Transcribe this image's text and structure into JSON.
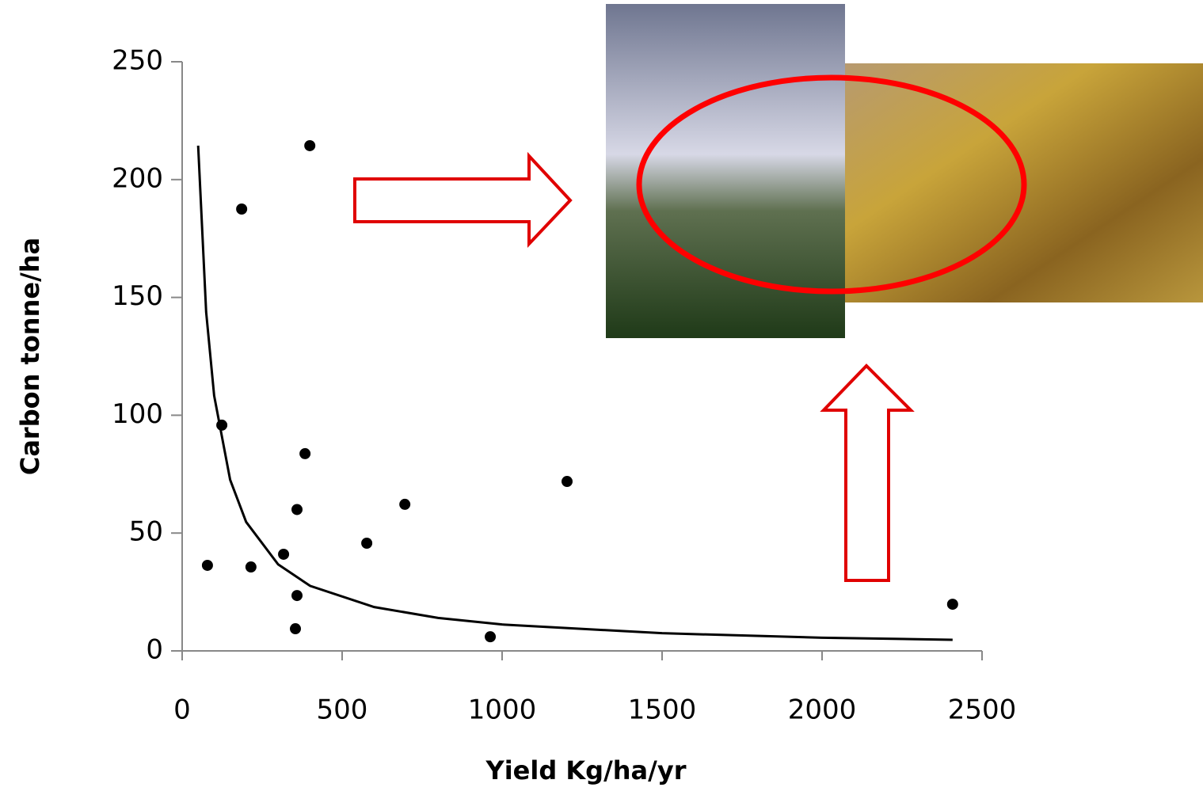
{
  "chart_data": {
    "type": "scatter",
    "xlabel": "Yield Kg/ha/yr",
    "ylabel": "Carbon tonne/ha",
    "xlim": [
      0,
      2500
    ],
    "xticks": [
      0,
      500,
      1000,
      1500,
      2000,
      2500
    ],
    "ylim": [
      0,
      250
    ],
    "yticks": [
      0,
      50,
      100,
      150,
      200,
      250
    ],
    "series": [
      {
        "color": "#000000",
        "x": [
          79,
          186,
          124,
          215,
          317,
          359,
          354,
          359,
          384,
          399,
          577,
          696,
          963,
          1203,
          2408
        ],
        "values": [
          36.3,
          187.5,
          95.8,
          35.6,
          41,
          23.5,
          9.4,
          60,
          83.7,
          214.4,
          45.7,
          62.2,
          6,
          71.9,
          19.8
        ]
      },
      {
        "type": "line",
        "color": "#000000",
        "x": [
          50,
          75,
          100,
          150,
          200,
          300,
          400,
          600,
          800,
          1000,
          1500,
          2000,
          2408
        ],
        "values": [
          214.4,
          143.8,
          108.3,
          72.6,
          54.7,
          36.7,
          27.6,
          18.6,
          14.0,
          11.2,
          7.5,
          5.6,
          4.7
        ]
      }
    ]
  }
}
